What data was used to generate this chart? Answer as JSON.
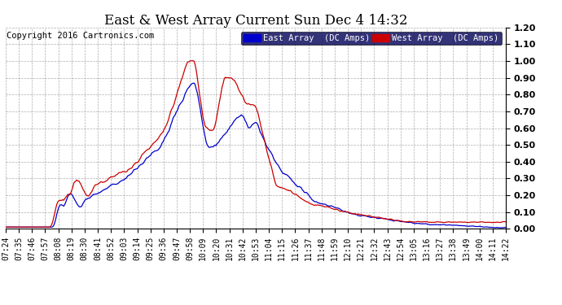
{
  "title": "East & West Array Current Sun Dec 4 14:32",
  "copyright": "Copyright 2016 Cartronics.com",
  "ylim": [
    0,
    1.2
  ],
  "yticks": [
    0.0,
    0.1,
    0.2,
    0.3,
    0.4,
    0.5,
    0.6,
    0.7,
    0.8,
    0.9,
    1.0,
    1.1,
    1.2
  ],
  "east_color": "#0000cc",
  "west_color": "#cc0000",
  "east_label": "East Array  (DC Amps)",
  "west_label": "West Array  (DC Amps)",
  "background_color": "#ffffff",
  "grid_color": "#999999",
  "title_fontsize": 12,
  "copyright_fontsize": 7.5,
  "legend_fontsize": 7.5,
  "tick_fontsize": 7,
  "ytick_fontsize": 8,
  "tick_labels": [
    "07:24",
    "07:35",
    "07:46",
    "07:57",
    "08:08",
    "08:19",
    "08:30",
    "08:41",
    "08:52",
    "09:03",
    "09:14",
    "09:25",
    "09:36",
    "09:47",
    "09:58",
    "10:09",
    "10:20",
    "10:31",
    "10:42",
    "10:53",
    "11:04",
    "11:15",
    "11:26",
    "11:37",
    "11:48",
    "11:59",
    "12:10",
    "12:21",
    "12:32",
    "12:43",
    "12:54",
    "13:05",
    "13:16",
    "13:27",
    "13:38",
    "13:49",
    "14:00",
    "14:11",
    "14:22"
  ]
}
